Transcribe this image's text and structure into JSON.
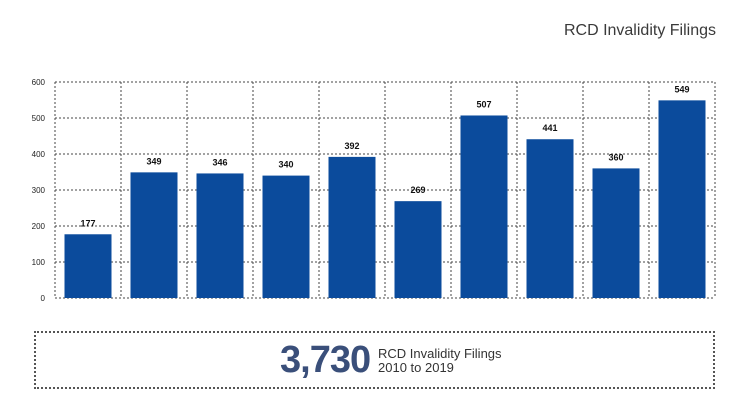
{
  "header": {
    "title": "RCD Invalidity Filings"
  },
  "colors": {
    "bar": "#0b4b9c",
    "summary_number": "#3a4f7a",
    "grid": "#444444"
  },
  "summary": {
    "total": "3,730",
    "line1": "RCD Invalidity Filings",
    "line2": "2010 to 2019"
  },
  "chart_data": {
    "type": "bar",
    "title": "RCD Invalidity Filings",
    "xlabel": "",
    "ylabel": "",
    "ylim": [
      0,
      600
    ],
    "yticks": [
      0,
      100,
      200,
      300,
      400,
      500,
      600
    ],
    "values": [
      177,
      349,
      346,
      340,
      392,
      269,
      507,
      441,
      360,
      549
    ],
    "data_labels": [
      "177",
      "349",
      "346",
      "340",
      "392",
      "269",
      "507",
      "441",
      "360",
      "549"
    ],
    "grid": true,
    "grid_style": "dotted"
  }
}
